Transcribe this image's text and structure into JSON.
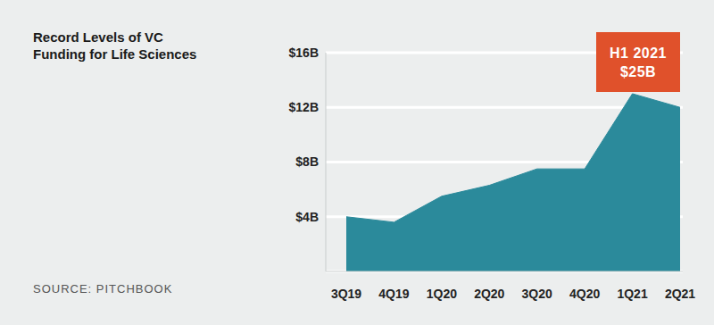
{
  "chart_data": {
    "type": "area",
    "title": "Record Levels of VC Funding for Life Sciences",
    "source": "SOURCE: PITCHBOOK",
    "annotation": [
      "H1 2021",
      "$25B"
    ],
    "categories": [
      "3Q19",
      "4Q19",
      "1Q20",
      "2Q20",
      "3Q20",
      "4Q20",
      "1Q21",
      "2Q21"
    ],
    "values": [
      4.0,
      3.6,
      5.5,
      6.3,
      7.5,
      7.5,
      13.0,
      12.0
    ],
    "color": "#2b8a9b",
    "ylim": [
      0,
      16
    ],
    "yticks": [
      {
        "value": 4,
        "label": "$4B"
      },
      {
        "value": 8,
        "label": "$8B"
      },
      {
        "value": 12,
        "label": "$12B"
      },
      {
        "value": 16,
        "label": "$16B"
      }
    ],
    "grid": true
  }
}
